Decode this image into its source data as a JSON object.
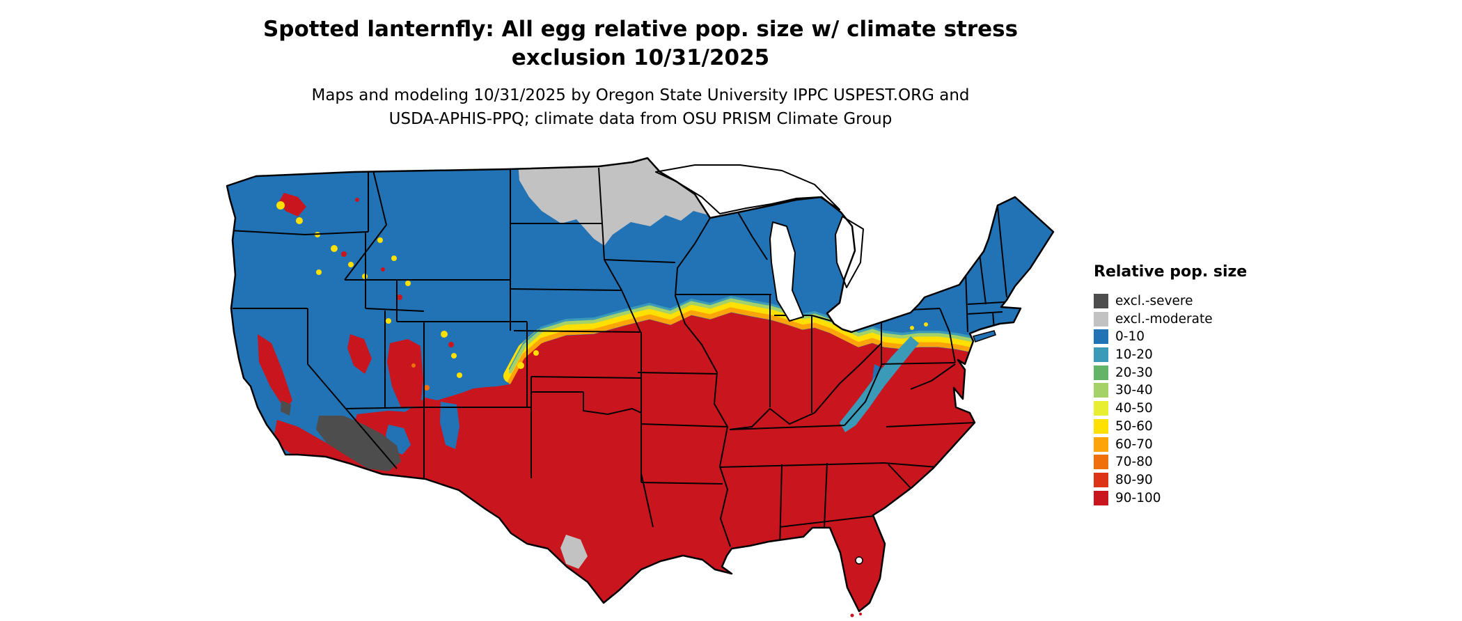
{
  "title": {
    "line1": "Spotted lanternfly: All egg relative pop. size w/ climate stress",
    "line2": "exclusion 10/31/2025"
  },
  "subtitle": {
    "line1": "Maps and modeling 10/31/2025 by Oregon State University IPPC USPEST.ORG and",
    "line2": "USDA-APHIS-PPQ; climate data from OSU PRISM Climate Group"
  },
  "legend": {
    "title": "Relative pop. size",
    "items": [
      {
        "label": "excl.-severe",
        "color": "#4d4d4d"
      },
      {
        "label": "excl.-moderate",
        "color": "#c2c2c2"
      },
      {
        "label": "0-10",
        "color": "#2272b6"
      },
      {
        "label": "10-20",
        "color": "#3b9ab8"
      },
      {
        "label": "20-30",
        "color": "#63b466"
      },
      {
        "label": "30-40",
        "color": "#a4d268"
      },
      {
        "label": "40-50",
        "color": "#e8ef33"
      },
      {
        "label": "50-60",
        "color": "#ffe000"
      },
      {
        "label": "60-70",
        "color": "#fca40a"
      },
      {
        "label": "70-80",
        "color": "#ef700b"
      },
      {
        "label": "80-90",
        "color": "#dd3418"
      },
      {
        "label": "90-100",
        "color": "#c9151d"
      }
    ]
  },
  "map": {
    "palette": {
      "excl_severe": "#4d4d4d",
      "excl_moderate": "#c2c2c2",
      "pop_0_10": "#2272b6",
      "pop_10_20": "#3b9ab8",
      "pop_20_30": "#63b466",
      "pop_30_40": "#a4d268",
      "pop_40_50": "#e8ef33",
      "pop_50_60": "#ffe000",
      "pop_60_70": "#fca40a",
      "pop_70_80": "#ef700b",
      "pop_80_90": "#dd3418",
      "pop_90_100": "#c9151d",
      "water": "#ffffff",
      "border": "#000000"
    }
  }
}
